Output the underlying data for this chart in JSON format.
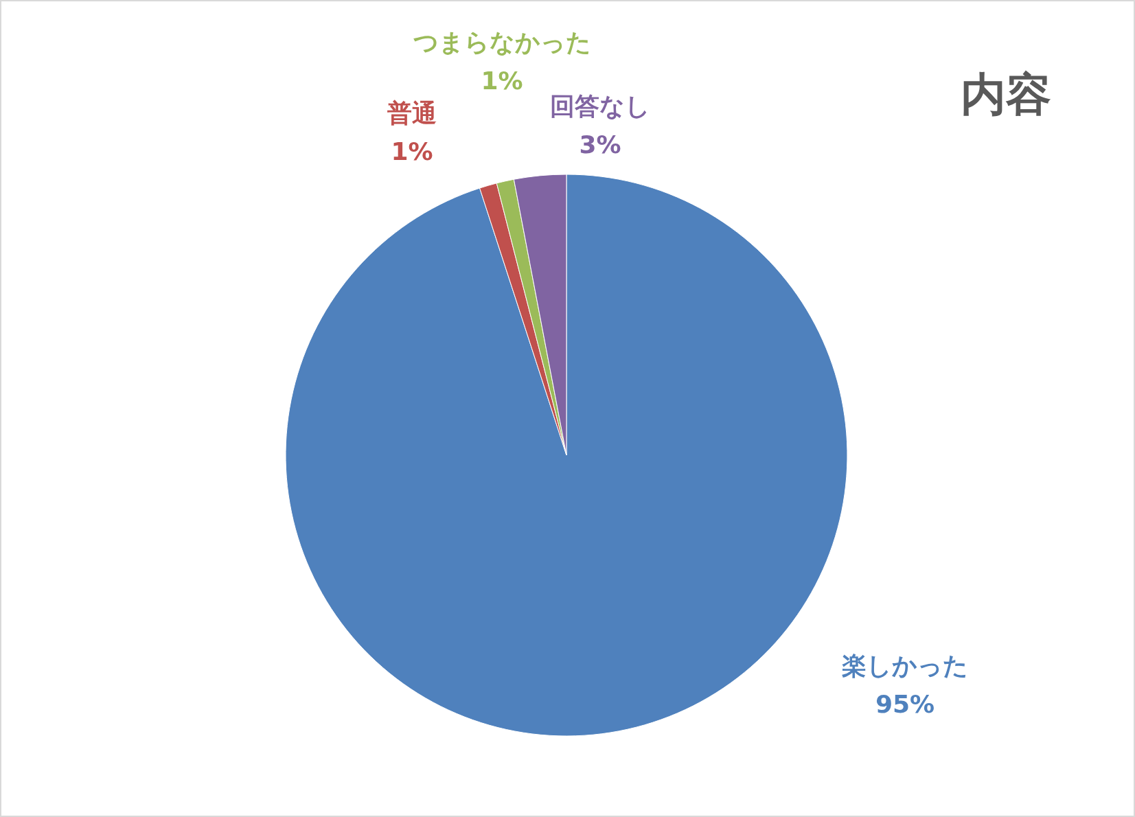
{
  "chart_data": {
    "type": "pie",
    "title": "内容",
    "categories": [
      "楽しかった",
      "普通",
      "つまらなかった",
      "回答なし"
    ],
    "values": [
      95,
      1,
      1,
      3
    ],
    "colors": [
      "#4f81bd",
      "#c0504d",
      "#9bbb59",
      "#8064a2"
    ],
    "value_labels": [
      "95%",
      "1%",
      "1%",
      "3%"
    ],
    "legend": false
  }
}
